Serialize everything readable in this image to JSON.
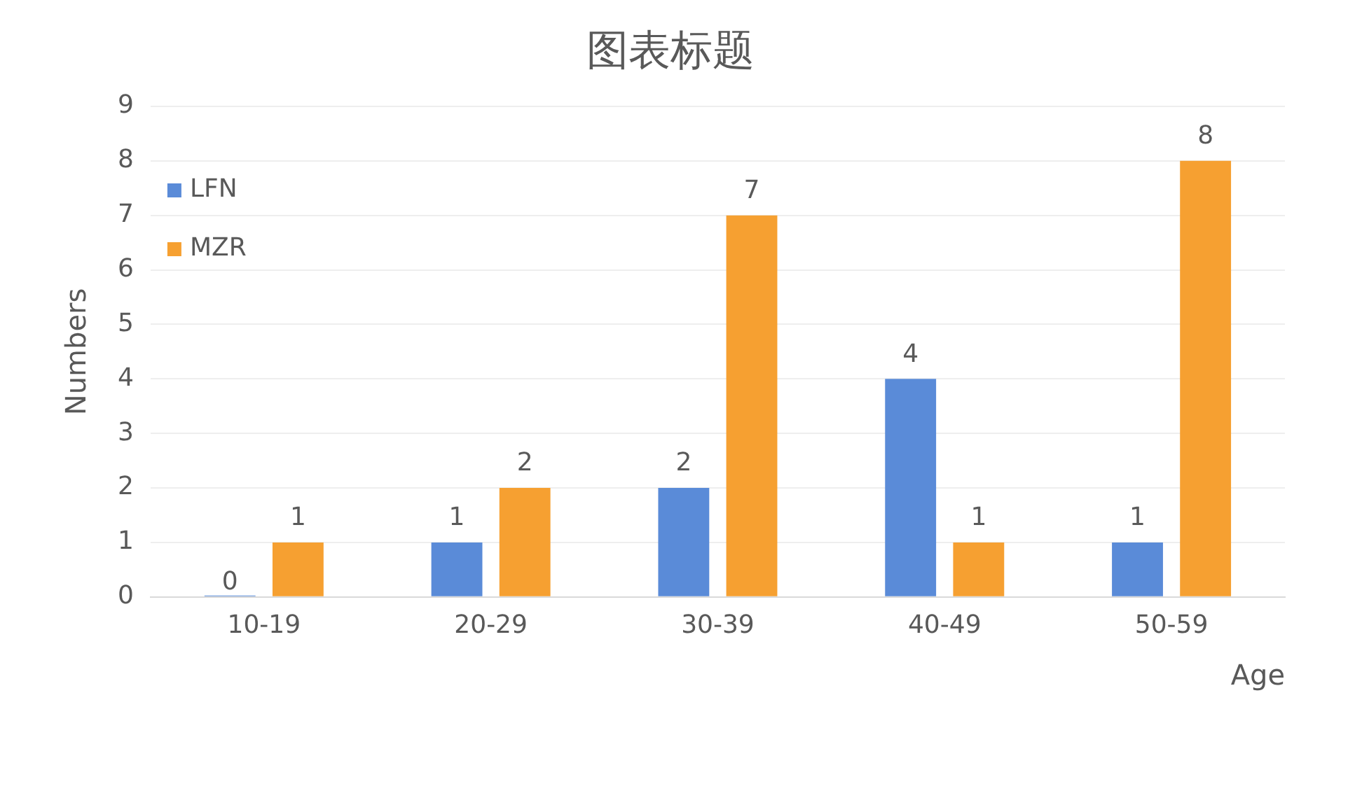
{
  "chart_data": {
    "type": "bar",
    "title": "图表标题",
    "xlabel": "Age",
    "ylabel": "Numbers",
    "categories": [
      "10-19",
      "20-29",
      "30-39",
      "40-49",
      "50-59"
    ],
    "series": [
      {
        "name": "LFN",
        "color": "#5a8bd8",
        "values": [
          0,
          1,
          2,
          4,
          1
        ]
      },
      {
        "name": "MZR",
        "color": "#f6a031",
        "values": [
          1,
          2,
          7,
          1,
          8
        ]
      }
    ],
    "ylim": [
      0,
      9
    ],
    "yticks": [
      0,
      1,
      2,
      3,
      4,
      5,
      6,
      7,
      8,
      9
    ],
    "grid": "y",
    "legend": "top left",
    "data_labels": true
  }
}
